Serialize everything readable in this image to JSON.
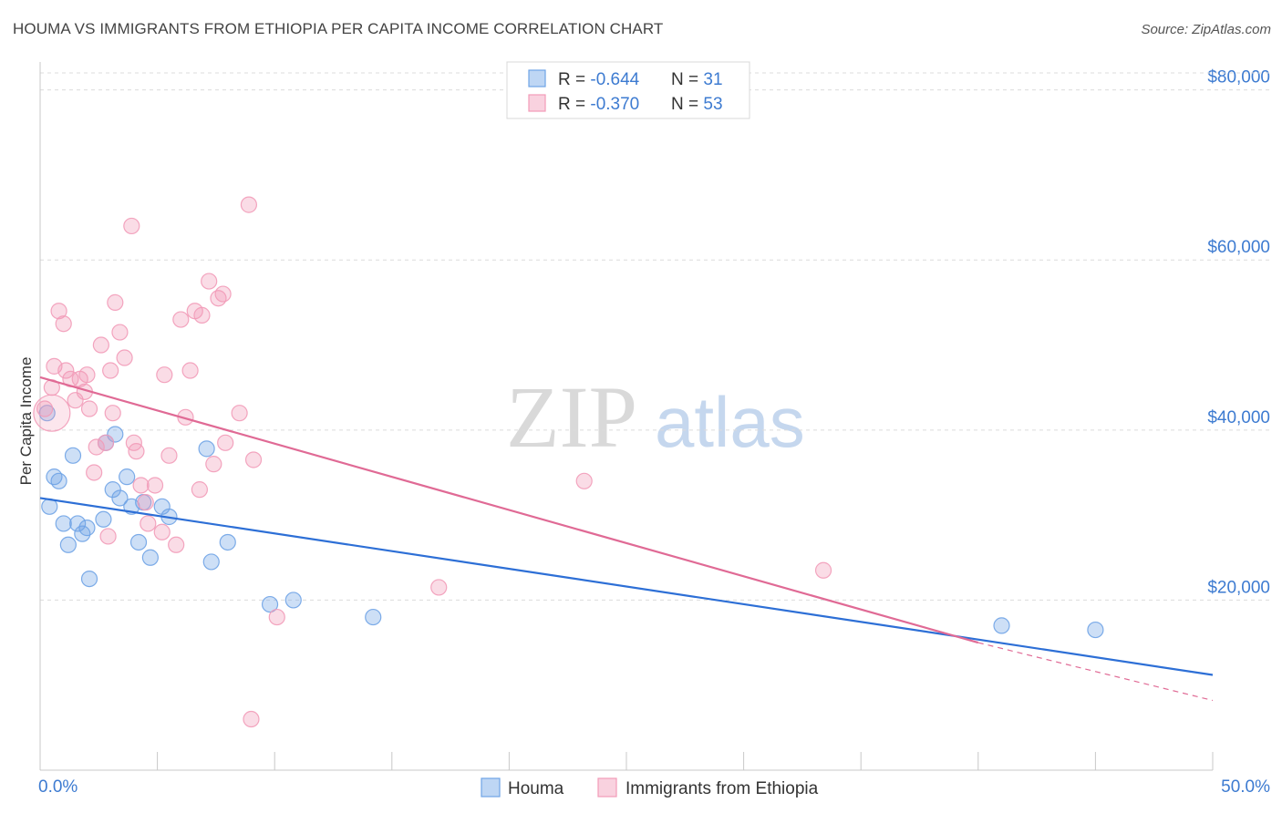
{
  "title": "HOUMA VS IMMIGRANTS FROM ETHIOPIA PER CAPITA INCOME CORRELATION CHART",
  "source": "Source: ZipAtlas.com",
  "watermark": {
    "zip": "ZIP",
    "atlas": "atlas"
  },
  "legend_stats": [
    {
      "r_label": "R = ",
      "r_value": "-0.644",
      "n_label": "N = ",
      "n_value": "31",
      "color": "#6fa3e6"
    },
    {
      "r_label": "R = ",
      "r_value": "-0.370",
      "n_label": "N = ",
      "n_value": "53",
      "color": "#f29bb8"
    }
  ],
  "bottom_legend": [
    {
      "label": "Houma",
      "color": "#6fa3e6"
    },
    {
      "label": "Immigrants from Ethiopia",
      "color": "#f29bb8"
    }
  ],
  "chart_data": {
    "type": "scatter",
    "title": "HOUMA VS IMMIGRANTS FROM ETHIOPIA PER CAPITA INCOME CORRELATION CHART",
    "xlabel": "",
    "ylabel": "Per Capita Income",
    "xlim": [
      0,
      50
    ],
    "ylim": [
      0,
      82000
    ],
    "x_tick_labels": [
      "0.0%",
      "50.0%"
    ],
    "y_ticks": [
      20000,
      40000,
      60000,
      80000
    ],
    "y_tick_labels": [
      "$20,000",
      "$40,000",
      "$60,000",
      "$80,000"
    ],
    "grid": true,
    "legend_position": "top-center",
    "series": [
      {
        "name": "Houma",
        "color": "#6fa3e6",
        "line_color": "#2d6fd6",
        "points": [
          [
            0.3,
            42000
          ],
          [
            0.4,
            31000
          ],
          [
            0.6,
            34500
          ],
          [
            0.8,
            34000
          ],
          [
            1.0,
            29000
          ],
          [
            1.2,
            26500
          ],
          [
            1.4,
            37000
          ],
          [
            1.6,
            29000
          ],
          [
            1.8,
            27800
          ],
          [
            2.0,
            28500
          ],
          [
            2.1,
            22500
          ],
          [
            2.7,
            29500
          ],
          [
            2.8,
            38500
          ],
          [
            3.1,
            33000
          ],
          [
            3.2,
            39500
          ],
          [
            3.4,
            32000
          ],
          [
            3.7,
            34500
          ],
          [
            3.9,
            31000
          ],
          [
            4.2,
            26800
          ],
          [
            4.4,
            31500
          ],
          [
            4.7,
            25000
          ],
          [
            5.2,
            31000
          ],
          [
            5.5,
            29800
          ],
          [
            7.1,
            37800
          ],
          [
            7.3,
            24500
          ],
          [
            8.0,
            26800
          ],
          [
            9.8,
            19500
          ],
          [
            10.8,
            20000
          ],
          [
            14.2,
            18000
          ],
          [
            41.0,
            17000
          ],
          [
            45.0,
            16500
          ]
        ],
        "trend": {
          "x": [
            0,
            50
          ],
          "y": [
            32000,
            11200
          ]
        }
      },
      {
        "name": "Immigrants from Ethiopia",
        "color": "#f29bb8",
        "line_color": "#e06a95",
        "points": [
          [
            0.2,
            42500
          ],
          [
            0.5,
            45000
          ],
          [
            0.6,
            47500
          ],
          [
            0.8,
            54000
          ],
          [
            1.0,
            52500
          ],
          [
            1.1,
            47000
          ],
          [
            1.3,
            46000
          ],
          [
            1.5,
            43500
          ],
          [
            1.7,
            46000
          ],
          [
            1.9,
            44500
          ],
          [
            2.0,
            46500
          ],
          [
            2.1,
            42500
          ],
          [
            2.3,
            35000
          ],
          [
            2.4,
            38000
          ],
          [
            2.6,
            50000
          ],
          [
            2.8,
            38500
          ],
          [
            2.9,
            27500
          ],
          [
            3.0,
            47000
          ],
          [
            3.1,
            42000
          ],
          [
            3.2,
            55000
          ],
          [
            3.4,
            51500
          ],
          [
            3.6,
            48500
          ],
          [
            3.9,
            64000
          ],
          [
            4.0,
            38500
          ],
          [
            4.1,
            37500
          ],
          [
            4.3,
            33500
          ],
          [
            4.5,
            31500
          ],
          [
            4.6,
            29000
          ],
          [
            4.9,
            33500
          ],
          [
            5.2,
            28000
          ],
          [
            5.3,
            46500
          ],
          [
            5.5,
            37000
          ],
          [
            5.8,
            26500
          ],
          [
            6.0,
            53000
          ],
          [
            6.2,
            41500
          ],
          [
            6.4,
            47000
          ],
          [
            6.6,
            54000
          ],
          [
            6.8,
            33000
          ],
          [
            6.9,
            53500
          ],
          [
            7.2,
            57500
          ],
          [
            7.4,
            36000
          ],
          [
            7.6,
            55500
          ],
          [
            7.8,
            56000
          ],
          [
            7.9,
            38500
          ],
          [
            8.5,
            42000
          ],
          [
            8.9,
            66500
          ],
          [
            9.1,
            36500
          ],
          [
            10.1,
            18000
          ],
          [
            9.0,
            6000
          ],
          [
            17.0,
            21500
          ],
          [
            23.2,
            34000
          ],
          [
            33.4,
            23500
          ],
          [
            0.5,
            42000
          ]
        ],
        "trend": {
          "x": [
            0,
            40
          ],
          "y": [
            46200,
            15000
          ]
        },
        "trend_dashed": {
          "x": [
            40,
            50
          ],
          "y": [
            15000,
            8200
          ]
        }
      }
    ]
  }
}
